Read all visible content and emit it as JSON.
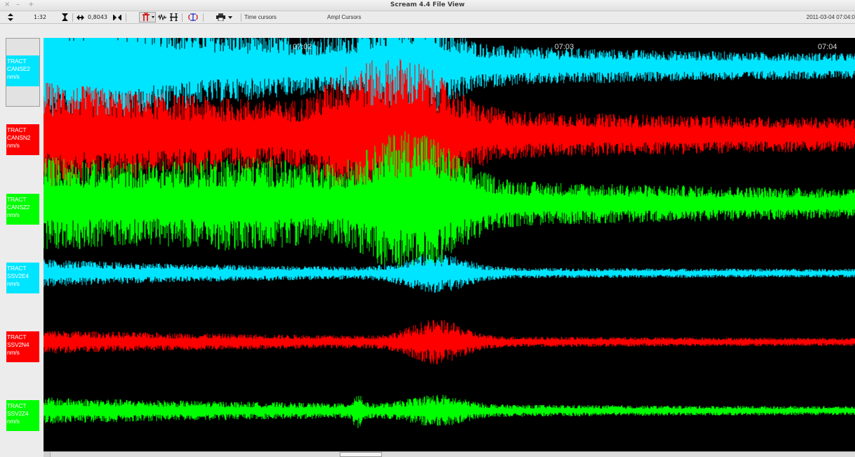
{
  "window": {
    "title": "Scream 4.4 File View",
    "controls": [
      "×",
      "–",
      "+"
    ]
  },
  "toolbar": {
    "zoom_label": "1:32",
    "gain_value": "0,8043",
    "time_cursors_label": "Time cursors",
    "ampl_cursors_label": "Ampl Cursors",
    "datetime": "2011-03-04 07:04:0"
  },
  "icons": {
    "sort": "sort-updown-icon",
    "vertical_scale": "vertical-scale-icon",
    "horizontal_expand": "horizontal-expand-icon",
    "horizontal_shrink": "horizontal-shrink-icon",
    "filter": "filter-icon",
    "waveform": "waveform-icon",
    "ruler": "ruler-icon",
    "rotate": "rotate-components-icon",
    "print": "print-icon"
  },
  "time_axis": {
    "ticks": [
      "07:02",
      "07:03",
      "07:04"
    ]
  },
  "channels": [
    {
      "line1": "TRACT",
      "line2": "CANSE2",
      "units": "nm/s",
      "color": "#00e5ff"
    },
    {
      "line1": "TRACT",
      "line2": "CANSN2",
      "units": "nm/s",
      "color": "#ff0000"
    },
    {
      "line1": "TRACT",
      "line2": "CANSZ2",
      "units": "nm/s",
      "color": "#00ff00"
    },
    {
      "line1": "TRACT",
      "line2": "SSV2E4",
      "units": "nm/s",
      "color": "#00e5ff"
    },
    {
      "line1": "TRACT",
      "line2": "SSV2N4",
      "units": "nm/s",
      "color": "#ff0000"
    },
    {
      "line1": "TRACT",
      "line2": "SSV2Z4",
      "units": "nm/s",
      "color": "#00ff00"
    }
  ],
  "colors": {
    "plot_background": "#000000",
    "panel_background": "#ececec"
  }
}
